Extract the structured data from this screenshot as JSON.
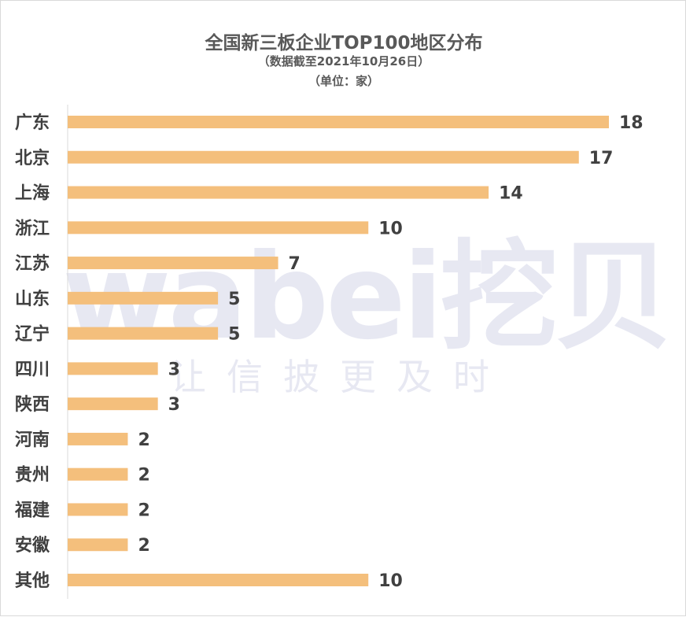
{
  "chart_data": {
    "type": "bar",
    "orientation": "horizontal",
    "title": "全国新三板企业TOP100地区分布",
    "subtitle": "（数据截至2021年10月26日）",
    "unit": "（单位：家）",
    "categories": [
      "广东",
      "北京",
      "上海",
      "浙江",
      "江苏",
      "山东",
      "辽宁",
      "四川",
      "陕西",
      "河南",
      "贵州",
      "福建",
      "安徽",
      "其他"
    ],
    "values": [
      18,
      17,
      14,
      10,
      7,
      5,
      5,
      3,
      3,
      2,
      2,
      2,
      2,
      10
    ],
    "xlim": [
      0,
      18
    ],
    "grid": false,
    "legend": "none",
    "bar_color": "#f4bf7c",
    "label_color": "#404040",
    "axis_color": "#d9d9d9"
  },
  "watermark": {
    "brand": "wabei挖贝",
    "slogan": "让信披更及时"
  }
}
